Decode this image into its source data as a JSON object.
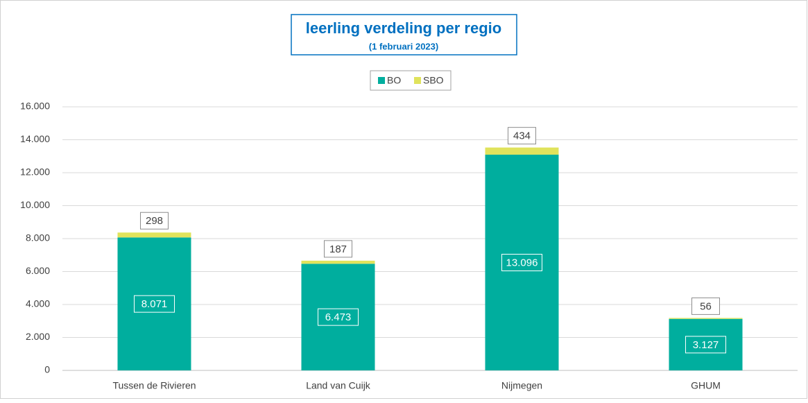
{
  "chart_data": {
    "type": "stacked_bar",
    "title": "leerling verdeling per regio",
    "subtitle": "(1 februari 2023)",
    "categories": [
      "Tussen de Rivieren",
      "Land van Cuijk",
      "Nijmegen",
      "GHUM"
    ],
    "series": [
      {
        "name": "BO",
        "color": "#00ae9e",
        "values": [
          8071,
          6473,
          13096,
          3127
        ],
        "value_labels": [
          "8.071",
          "6.473",
          "13.096",
          "3.127"
        ]
      },
      {
        "name": "SBO",
        "color": "#e0e35c",
        "values": [
          298,
          187,
          434,
          56
        ]
      }
    ],
    "ylim": [
      0,
      16000
    ],
    "yticks": [
      0,
      {
        "value": 2000,
        "label": "2.000"
      },
      {
        "value": 4000,
        "label": "4.000"
      },
      {
        "value": 6000,
        "label": "6.000"
      },
      {
        "value": 8000,
        "label": "8.000"
      },
      {
        "value": 10000,
        "label": "10.000"
      },
      {
        "value": 12000,
        "label": "12.000"
      },
      {
        "value": 14000,
        "label": "14.000"
      },
      {
        "value": 16000,
        "label": "16.000"
      }
    ],
    "grid": true,
    "legend": "top"
  }
}
